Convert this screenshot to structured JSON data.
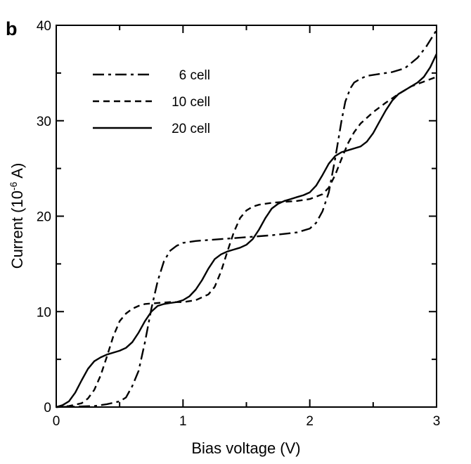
{
  "chart_data": {
    "type": "line",
    "panel_label": "b",
    "xlabel": "Bias voltage (V)",
    "ylabel_main": "Current (10",
    "ylabel_sup": "-6",
    "ylabel_end": " A)",
    "xlim": [
      0,
      3
    ],
    "ylim": [
      0,
      40
    ],
    "x_ticks": [
      0,
      1,
      2,
      3
    ],
    "x_tick_labels": [
      "0",
      "1",
      "2",
      "3"
    ],
    "y_ticks": [
      0,
      10,
      20,
      30,
      40
    ],
    "y_tick_labels": [
      "0",
      "10",
      "20",
      "30",
      "40"
    ],
    "x_minor_step": 0.5,
    "y_minor_step": 5,
    "grid": false,
    "legend_position": "top-left",
    "series": [
      {
        "name": "6 cell",
        "style": "dashdot",
        "x": [
          0,
          0.3,
          0.4,
          0.5,
          0.55,
          0.6,
          0.65,
          0.7,
          0.75,
          0.8,
          0.85,
          0.9,
          0.95,
          1.0,
          1.1,
          1.2,
          1.3,
          1.5,
          1.7,
          1.9,
          2.0,
          2.05,
          2.1,
          2.15,
          2.2,
          2.25,
          2.28,
          2.32,
          2.35,
          2.4,
          2.45,
          2.55,
          2.65,
          2.75,
          2.85,
          2.92,
          3.0
        ],
        "y": [
          0,
          0.1,
          0.3,
          0.6,
          1.0,
          2.2,
          3.8,
          6.8,
          10.3,
          13.2,
          15.3,
          16.4,
          16.9,
          17.2,
          17.4,
          17.5,
          17.6,
          17.8,
          18.0,
          18.3,
          18.7,
          19.3,
          20.5,
          22.5,
          26.0,
          30.0,
          32.0,
          33.4,
          34.0,
          34.4,
          34.7,
          34.9,
          35.1,
          35.5,
          36.6,
          37.8,
          39.5
        ]
      },
      {
        "name": "10 cell",
        "style": "dashed",
        "x": [
          0,
          0.1,
          0.2,
          0.25,
          0.3,
          0.35,
          0.4,
          0.45,
          0.5,
          0.55,
          0.6,
          0.65,
          0.7,
          0.8,
          0.9,
          1.0,
          1.1,
          1.2,
          1.25,
          1.3,
          1.35,
          1.4,
          1.45,
          1.5,
          1.55,
          1.6,
          1.7,
          1.8,
          1.9,
          2.0,
          2.1,
          2.15,
          2.2,
          2.25,
          2.3,
          2.35,
          2.4,
          2.5,
          2.6,
          2.7,
          2.8,
          2.9,
          3.0
        ],
        "y": [
          0,
          0.1,
          0.4,
          0.9,
          1.8,
          3.3,
          5.3,
          7.4,
          9.0,
          9.8,
          10.3,
          10.6,
          10.8,
          10.9,
          11.0,
          11.0,
          11.2,
          11.8,
          12.6,
          14.2,
          16.3,
          18.3,
          19.8,
          20.6,
          21.0,
          21.2,
          21.4,
          21.5,
          21.6,
          21.8,
          22.3,
          23.0,
          24.3,
          26.0,
          27.6,
          28.8,
          29.7,
          30.9,
          31.9,
          32.8,
          33.6,
          34.1,
          34.6
        ]
      },
      {
        "name": "20 cell",
        "style": "solid",
        "x": [
          0,
          0.05,
          0.1,
          0.15,
          0.2,
          0.25,
          0.3,
          0.35,
          0.4,
          0.45,
          0.5,
          0.55,
          0.6,
          0.65,
          0.7,
          0.75,
          0.8,
          0.85,
          0.9,
          0.95,
          1.0,
          1.05,
          1.1,
          1.15,
          1.2,
          1.25,
          1.3,
          1.35,
          1.4,
          1.45,
          1.5,
          1.55,
          1.6,
          1.65,
          1.7,
          1.75,
          1.8,
          1.85,
          1.9,
          1.95,
          2.0,
          2.05,
          2.1,
          2.15,
          2.2,
          2.25,
          2.3,
          2.35,
          2.4,
          2.45,
          2.5,
          2.55,
          2.6,
          2.65,
          2.7,
          2.75,
          2.8,
          2.85,
          2.9,
          2.95,
          3.0
        ],
        "y": [
          0,
          0.2,
          0.6,
          1.5,
          2.8,
          4.0,
          4.8,
          5.2,
          5.5,
          5.7,
          5.9,
          6.2,
          6.8,
          7.8,
          9.0,
          10.0,
          10.6,
          10.8,
          10.9,
          11.0,
          11.2,
          11.6,
          12.3,
          13.3,
          14.5,
          15.5,
          16.0,
          16.3,
          16.5,
          16.7,
          17.0,
          17.6,
          18.6,
          19.8,
          20.8,
          21.3,
          21.6,
          21.8,
          22.0,
          22.2,
          22.5,
          23.2,
          24.3,
          25.5,
          26.3,
          26.7,
          26.9,
          27.1,
          27.3,
          27.8,
          28.7,
          29.9,
          31.1,
          32.1,
          32.8,
          33.2,
          33.6,
          34.0,
          34.6,
          35.6,
          37.0
        ]
      }
    ]
  }
}
